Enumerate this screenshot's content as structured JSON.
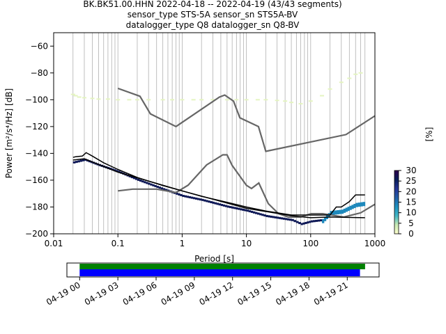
{
  "title_lines": [
    "BK.BK51.00.HHN   2022-04-18 -- 2022-04-19  (43/43 segments)",
    "sensor_type STS-5A sensor_sn STS5A-BV",
    "datalogger_type Q8 datalogger_sn Q8-BV"
  ],
  "chart_data": {
    "type": "heatmap",
    "subtype": "probabilistic-power-spectral-density",
    "xlabel": "Period [s]",
    "ylabel": "Power [m²/s⁴/Hz] [dB]",
    "xscale": "log",
    "xlim": [
      0.01,
      1000
    ],
    "ylim": [
      -200,
      -50
    ],
    "x_ticks": [
      0.01,
      0.1,
      1,
      10,
      100,
      1000
    ],
    "x_tick_labels": [
      "0.01",
      "0.1",
      "1",
      "10",
      "100",
      "1000"
    ],
    "y_ticks": [
      -200,
      -180,
      -160,
      -140,
      -120,
      -100,
      -80,
      -60
    ],
    "y_tick_labels": [
      "−200",
      "−180",
      "−160",
      "−140",
      "−120",
      "−100",
      "−80",
      "−60"
    ],
    "colorbar": {
      "label": "[%]",
      "min": 0,
      "max": 30,
      "ticks": [
        0,
        5,
        10,
        15,
        20,
        25,
        30
      ],
      "tick_labels": [
        "0",
        "5",
        "10",
        "15",
        "20",
        "25",
        "30"
      ],
      "colormap_stops": [
        "#ffffcc",
        "#c7e9b4",
        "#41b6c4",
        "#1d91c0",
        "#225ea8",
        "#253494",
        "#081d58",
        "#2d004b"
      ]
    },
    "noise_models": [
      {
        "name": "NHNM",
        "color": "#666666",
        "x": [
          0.1,
          0.22,
          0.32,
          0.8,
          3.8,
          4.6,
          6.3,
          7.9,
          15.4,
          20,
          354.8,
          1000
        ],
        "y": [
          -91.5,
          -97.4,
          -110.5,
          -120,
          -98,
          -96.5,
          -101,
          -113.5,
          -120,
          -138.5,
          -126,
          -112
        ]
      },
      {
        "name": "NLNM",
        "color": "#666666",
        "x": [
          0.1,
          0.17,
          0.4,
          0.8,
          1.24,
          2.4,
          4.3,
          5,
          6,
          10,
          12,
          15.6,
          21.9,
          31.6,
          45,
          70,
          101,
          154,
          328,
          600,
          1000
        ],
        "y": [
          -168,
          -166.7,
          -166.7,
          -169.2,
          -163.7,
          -148.6,
          -141.1,
          -141.1,
          -149,
          -163.8,
          -166.2,
          -162.1,
          -177.5,
          -185,
          -187.5,
          -187.5,
          -185,
          -185,
          -187.5,
          -184.4,
          -178
        ]
      },
      {
        "name": "mode",
        "color": "#000000",
        "x": [
          0.02,
          0.022,
          0.028,
          0.032,
          0.04,
          0.06,
          0.1,
          0.2,
          0.5,
          1,
          2,
          5,
          10,
          20,
          50,
          100,
          200,
          250,
          300,
          400,
          500,
          700
        ],
        "y": [
          -143,
          -142.5,
          -142,
          -139.5,
          -142,
          -147,
          -152,
          -158,
          -164,
          -168,
          -172,
          -176.5,
          -180,
          -183,
          -186,
          -186,
          -186,
          -180,
          -180,
          -176,
          -171,
          -171
        ]
      },
      {
        "name": "mean",
        "color": "#000000",
        "x": [
          0.02,
          0.03,
          0.1,
          1,
          10,
          50,
          100,
          200,
          700
        ],
        "y": [
          -145,
          -144,
          -154,
          -168,
          -181,
          -186.5,
          -188,
          -187.5,
          -188
        ]
      }
    ],
    "psd_band_lower": {
      "x": [
        0.02,
        0.03,
        0.05,
        0.1,
        0.2,
        0.5,
        1,
        2,
        5,
        10,
        20,
        50,
        70,
        100,
        150,
        200,
        300,
        500,
        700
      ],
      "y": [
        -147,
        -145,
        -149,
        -154,
        -160,
        -167,
        -172,
        -175,
        -180,
        -183,
        -187,
        -190,
        -193,
        -191,
        -190,
        -184,
        -183,
        -178,
        -177
      ]
    },
    "psd_spread_points": {
      "x": [
        0.02,
        0.022,
        0.025,
        0.03,
        0.04,
        0.05,
        0.07,
        0.1,
        0.15,
        0.2,
        0.3,
        0.5,
        0.7,
        1,
        1.5,
        2,
        3,
        5,
        7,
        10,
        15,
        20,
        30,
        40,
        50,
        70,
        100,
        150,
        200,
        300,
        400,
        500,
        600
      ],
      "y": [
        -96,
        -97,
        -98,
        -98.5,
        -99,
        -99.5,
        -99.5,
        -100,
        -100,
        -100,
        -100,
        -100,
        -100,
        -100,
        -100,
        -100,
        -100,
        -100,
        -100,
        -100,
        -100,
        -100,
        -100.5,
        -101,
        -102,
        -103,
        -101,
        -97,
        -92,
        -87,
        -84,
        -81,
        -80
      ]
    },
    "time_bar": {
      "xlim_hours": [
        -1,
        23.5
      ],
      "tick_hours": [
        0,
        3,
        6,
        9,
        12,
        15,
        18,
        21
      ],
      "tick_labels": [
        "04-19 00",
        "04-19 03",
        "04-19 06",
        "04-19 09",
        "04-19 12",
        "04-19 15",
        "04-19 18",
        "04-19 21"
      ],
      "data_coverage": {
        "start": 0,
        "end": 22,
        "color": "#0000ff"
      },
      "psd_coverage": {
        "start": 0,
        "end": 22.4,
        "color": "#008000"
      }
    }
  }
}
